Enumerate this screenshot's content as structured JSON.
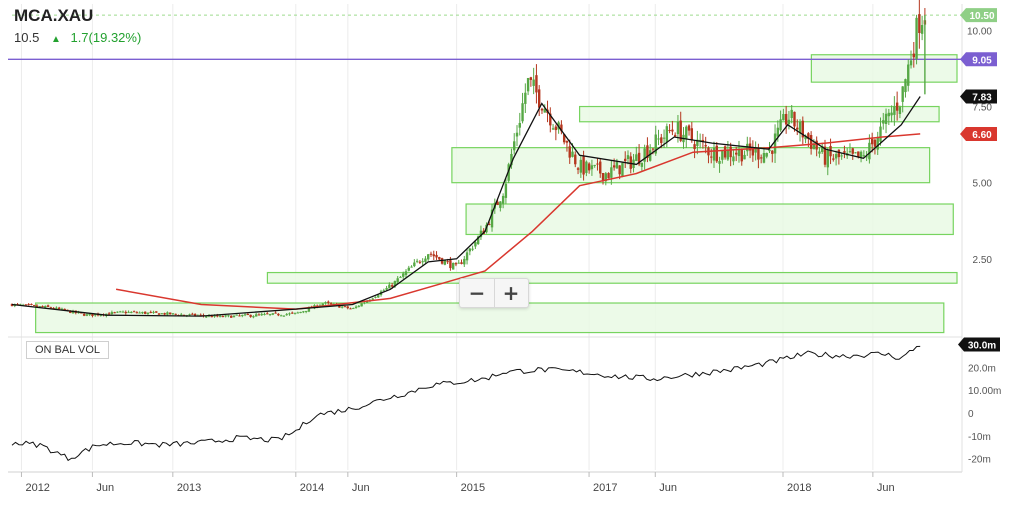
{
  "header": {
    "ticker": "MCA.XAU",
    "price": "10.5",
    "change": "1.7(19.32%)",
    "arrow_icon": "triangle-up-icon"
  },
  "zoom": {
    "minus_label": "−",
    "plus_label": "+"
  },
  "indicator": {
    "label": "ON BAL VOL"
  },
  "colors": {
    "up": "#56a845",
    "down": "#b5361e",
    "ma_short": "#111111",
    "ma_long": "#d9372e",
    "zone_fill": "#e9f9e4",
    "zone_stroke": "#77d45f",
    "hline": "#7b5fd1"
  },
  "chart_data": [
    {
      "type": "candlestick",
      "title": "MCA.XAU",
      "x_ticks": [
        "2012",
        "Jun",
        "2013",
        "2014",
        "Jun",
        "2015",
        "2017",
        "Jun",
        "2018",
        "Jun"
      ],
      "y_ticks": [
        "10.00",
        "7.50",
        "5.00",
        "2.50"
      ],
      "ylim": [
        0,
        10.8
      ],
      "horizontal_line": 9.05,
      "price_labels": [
        {
          "text": "10.50",
          "value": 10.5,
          "kind": "last"
        },
        {
          "text": "9.05",
          "value": 9.05,
          "kind": "line"
        },
        {
          "text": "7.83",
          "value": 7.83,
          "kind": "ma_short"
        },
        {
          "text": "6.60",
          "value": 6.6,
          "kind": "ma_long"
        }
      ],
      "zones": [
        {
          "start": 0.08,
          "end": 1.05
        },
        {
          "start": 5.0,
          "end": 6.15
        },
        {
          "start": 3.3,
          "end": 4.3
        },
        {
          "start": 8.3,
          "end": 9.2
        },
        {
          "start": 7.0,
          "end": 7.5
        },
        {
          "start": 1.7,
          "end": 2.05
        }
      ],
      "price_path": [
        [
          0.0,
          1.0
        ],
        [
          0.04,
          0.9
        ],
        [
          0.08,
          0.65
        ],
        [
          0.12,
          0.75
        ],
        [
          0.16,
          0.7
        ],
        [
          0.22,
          0.6
        ],
        [
          0.26,
          0.65
        ],
        [
          0.3,
          0.7
        ],
        [
          0.33,
          1.05
        ],
        [
          0.36,
          0.85
        ],
        [
          0.4,
          1.6
        ],
        [
          0.44,
          2.7
        ],
        [
          0.47,
          2.2
        ],
        [
          0.5,
          3.5
        ],
        [
          0.52,
          4.8
        ],
        [
          0.545,
          8.3
        ],
        [
          0.56,
          7.7
        ],
        [
          0.6,
          5.5
        ],
        [
          0.63,
          5.3
        ],
        [
          0.66,
          5.8
        ],
        [
          0.7,
          6.8
        ],
        [
          0.74,
          6.0
        ],
        [
          0.8,
          6.0
        ],
        [
          0.82,
          7.2
        ],
        [
          0.86,
          5.8
        ],
        [
          0.9,
          5.8
        ],
        [
          0.94,
          7.8
        ],
        [
          0.96,
          10.5
        ]
      ],
      "ma_short": [
        [
          0.0,
          1.0
        ],
        [
          0.1,
          0.65
        ],
        [
          0.2,
          0.62
        ],
        [
          0.3,
          0.85
        ],
        [
          0.36,
          1.0
        ],
        [
          0.4,
          1.5
        ],
        [
          0.44,
          2.4
        ],
        [
          0.47,
          2.5
        ],
        [
          0.5,
          3.4
        ],
        [
          0.53,
          5.8
        ],
        [
          0.56,
          7.6
        ],
        [
          0.6,
          5.9
        ],
        [
          0.66,
          5.6
        ],
        [
          0.7,
          6.5
        ],
        [
          0.74,
          6.3
        ],
        [
          0.8,
          6.1
        ],
        [
          0.82,
          6.9
        ],
        [
          0.86,
          6.1
        ],
        [
          0.9,
          5.8
        ],
        [
          0.94,
          6.9
        ],
        [
          0.96,
          7.83
        ]
      ],
      "ma_long": [
        [
          0.11,
          1.5
        ],
        [
          0.2,
          1.0
        ],
        [
          0.3,
          0.85
        ],
        [
          0.4,
          1.2
        ],
        [
          0.45,
          1.65
        ],
        [
          0.5,
          2.1
        ],
        [
          0.55,
          3.4
        ],
        [
          0.6,
          4.9
        ],
        [
          0.66,
          5.3
        ],
        [
          0.72,
          6.0
        ],
        [
          0.8,
          6.15
        ],
        [
          0.86,
          6.3
        ],
        [
          0.92,
          6.5
        ],
        [
          0.96,
          6.6
        ]
      ]
    },
    {
      "type": "line",
      "title": "ON BAL VOL",
      "y_ticks": [
        "30.0m",
        "20.0m",
        "10.00m",
        "0",
        "-10m",
        "-20m"
      ],
      "ylim": [
        -25,
        32
      ],
      "last_value_label": "30.0m",
      "series": [
        {
          "points": [
            [
              0.0,
              -13
            ],
            [
              0.03,
              -14
            ],
            [
              0.06,
              -20
            ],
            [
              0.09,
              -14
            ],
            [
              0.12,
              -13
            ],
            [
              0.16,
              -14
            ],
            [
              0.2,
              -13
            ],
            [
              0.24,
              -11
            ],
            [
              0.28,
              -12
            ],
            [
              0.3,
              -8
            ],
            [
              0.32,
              -1
            ],
            [
              0.36,
              2
            ],
            [
              0.4,
              7
            ],
            [
              0.42,
              9
            ],
            [
              0.44,
              12
            ],
            [
              0.46,
              13
            ],
            [
              0.5,
              15
            ],
            [
              0.52,
              18
            ],
            [
              0.56,
              19
            ],
            [
              0.6,
              18
            ],
            [
              0.64,
              16
            ],
            [
              0.68,
              15
            ],
            [
              0.72,
              17
            ],
            [
              0.76,
              19
            ],
            [
              0.8,
              22
            ],
            [
              0.84,
              26
            ],
            [
              0.88,
              25
            ],
            [
              0.92,
              26
            ],
            [
              0.94,
              24
            ],
            [
              0.96,
              30
            ]
          ]
        }
      ]
    }
  ]
}
